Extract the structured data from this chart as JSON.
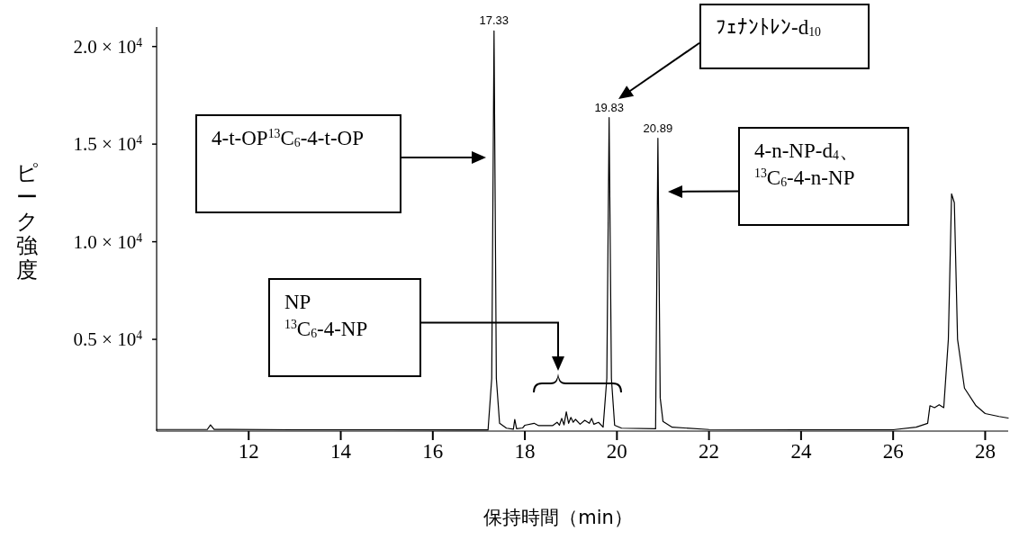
{
  "chart_data": {
    "type": "line",
    "xlabel": "保持時間（min）",
    "ylabel": "ピーク強度",
    "color": "#000000",
    "xlim": [
      10,
      28.5
    ],
    "ylim": [
      300,
      21000
    ],
    "xticks": [
      12,
      14,
      16,
      18,
      20,
      22,
      24,
      26,
      28
    ],
    "yticks": [
      {
        "value": 5000,
        "label": "0.5 × 10$^{4}$"
      },
      {
        "value": 10000,
        "label": "1.0 × 10$^{4}$"
      },
      {
        "value": 15000,
        "label": "1.5 × 10$^{4}$"
      },
      {
        "value": 20000,
        "label": "2.0 × 10$^{4}$"
      }
    ],
    "x": [
      10.0,
      11.1,
      11.17,
      11.25,
      13.0,
      15.0,
      17.2,
      17.28,
      17.33,
      17.38,
      17.45,
      17.6,
      17.75,
      17.78,
      17.82,
      17.95,
      18.0,
      18.2,
      18.3,
      18.6,
      18.7,
      18.75,
      18.8,
      18.85,
      18.9,
      18.95,
      19.0,
      19.05,
      19.1,
      19.2,
      19.3,
      19.4,
      19.45,
      19.5,
      19.6,
      19.7,
      19.78,
      19.83,
      19.88,
      19.95,
      20.1,
      20.84,
      20.89,
      20.94,
      21.0,
      21.2,
      22.0,
      24.0,
      26.0,
      26.5,
      26.75,
      26.8,
      26.9,
      27.0,
      27.1,
      27.2,
      27.27,
      27.33,
      27.4,
      27.55,
      27.8,
      28.0,
      28.3,
      28.5
    ],
    "values": [
      380,
      380,
      620,
      390,
      370,
      370,
      360,
      3000,
      20800,
      3000,
      700,
      450,
      400,
      900,
      420,
      460,
      600,
      700,
      580,
      580,
      750,
      600,
      950,
      620,
      1290,
      700,
      1000,
      750,
      900,
      650,
      850,
      700,
      950,
      650,
      750,
      500,
      3000,
      16360,
      3000,
      600,
      450,
      420,
      15300,
      2000,
      800,
      500,
      380,
      370,
      370,
      500,
      700,
      1600,
      1500,
      1650,
      1500,
      5000,
      12450,
      12000,
      5000,
      2500,
      1600,
      1200,
      1050,
      970
    ],
    "annotations": [
      {
        "text": "17.33",
        "x": 17.33,
        "y": 20800
      },
      {
        "text": "19.83",
        "x": 19.83,
        "y": 16360
      },
      {
        "text": "20.89",
        "x": 20.89,
        "y": 15300
      },
      "4-t-OP$^{13}$C$_{6}$-4-t-OP",
      "NP\n$^{13}$C$_{6}$-4-NP",
      "ﾌｪﾅﾝﾄﾚﾝ-d$_{10}$",
      "4-n-NP-d$_{4}$、$^{13}$C$_{6}$-4-n-NP"
    ]
  }
}
